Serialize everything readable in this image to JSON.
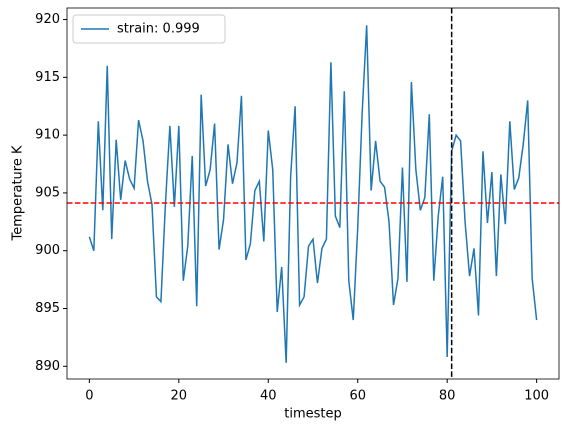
{
  "chart_data": {
    "type": "line",
    "x_label": "timestep",
    "y_label": "Temperature K",
    "x": [
      0,
      1,
      2,
      3,
      4,
      5,
      6,
      7,
      8,
      9,
      10,
      11,
      12,
      13,
      14,
      15,
      16,
      17,
      18,
      19,
      20,
      21,
      22,
      23,
      24,
      25,
      26,
      27,
      28,
      29,
      30,
      31,
      32,
      33,
      34,
      35,
      36,
      37,
      38,
      39,
      40,
      41,
      42,
      43,
      44,
      45,
      46,
      47,
      48,
      49,
      50,
      51,
      52,
      53,
      54,
      55,
      56,
      57,
      58,
      59,
      60,
      61,
      62,
      63,
      64,
      65,
      66,
      67,
      68,
      69,
      70,
      71,
      72,
      73,
      74,
      75,
      76,
      77,
      78,
      79,
      80,
      81,
      82,
      83,
      84,
      85,
      86,
      87,
      88,
      89,
      90,
      91,
      92,
      93,
      94,
      95,
      96,
      97,
      98,
      99,
      100
    ],
    "series": [
      {
        "name": "strain: 0.999",
        "color": "#1f77b4",
        "values": [
          901.2,
          900,
          911.2,
          903.5,
          916,
          901,
          909.6,
          904.4,
          907.8,
          906.2,
          905.4,
          911.3,
          909.5,
          906,
          904,
          896,
          895.6,
          904,
          910.8,
          903.8,
          910.8,
          897.4,
          900.4,
          908.2,
          895.2,
          913.5,
          905.6,
          907,
          911,
          900.1,
          902.7,
          909.2,
          905.8,
          907.6,
          913.4,
          899.2,
          900.6,
          905.2,
          906,
          900.8,
          910.4,
          907,
          894.7,
          898.6,
          890.3,
          906.4,
          912.5,
          895.3,
          896,
          900.4,
          901,
          897.2,
          900.2,
          901,
          916.3,
          903,
          902,
          913.8,
          897.4,
          894,
          902,
          912,
          919.5,
          905.2,
          909.5,
          906,
          905.5,
          902.5,
          895.3,
          897.6,
          907.2,
          897.3,
          914.6,
          907,
          903.5,
          904.6,
          911.8,
          897.4,
          903,
          906.4,
          890.8,
          908.6,
          910,
          909.5,
          902.5,
          897.8,
          900.2,
          894.4,
          908.6,
          902.4,
          906.8,
          897.8,
          906.6,
          902.3,
          911.2,
          905.3,
          906.3,
          909.2,
          913,
          897.6,
          894
        ]
      }
    ],
    "reference_lines": [
      {
        "axis": "y",
        "value": 904.13,
        "color": "red"
      },
      {
        "axis": "x",
        "value": 81,
        "color": "black"
      }
    ],
    "xlim": [
      -5,
      105
    ],
    "xticks": [
      0,
      20,
      40,
      60,
      80,
      100
    ],
    "ylim": [
      888.9,
      921.0
    ],
    "yticks": [
      890,
      895,
      900,
      905,
      910,
      915,
      920
    ],
    "legend": "upper left"
  }
}
